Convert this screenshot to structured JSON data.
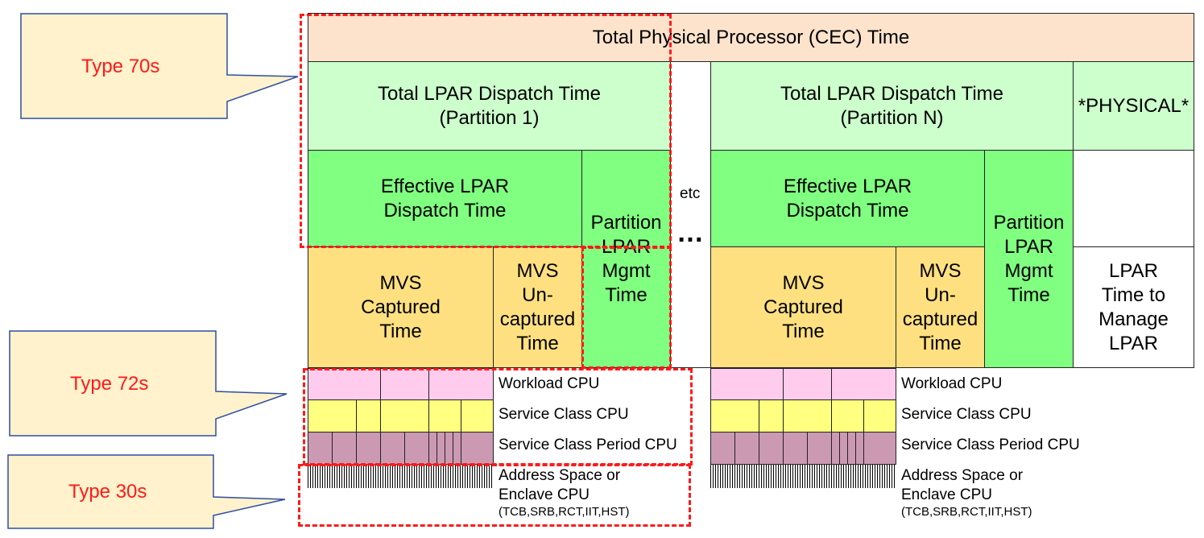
{
  "top_bar": "Total Physical Processor (CEC) Time",
  "partition_1": {
    "dispatch": "Total LPAR Dispatch Time\n(Partition 1)",
    "effective": "Effective LPAR\nDispatch Time",
    "mgmt": "Partition\nLPAR\nMgmt\nTime",
    "captured": "MVS\nCaptured\nTime",
    "uncaptured": "MVS\nUn-\ncaptured\nTime"
  },
  "partition_n": {
    "dispatch": "Total LPAR Dispatch Time\n(Partition N)",
    "effective": "Effective LPAR\nDispatch Time",
    "mgmt": "Partition\nLPAR\nMgmt\nTime",
    "captured": "MVS\nCaptured\nTime",
    "uncaptured": "MVS\nUn-\ncaptured\nTime"
  },
  "physical": {
    "label": "*PHYSICAL*",
    "manage": "LPAR\nTime to\nManage\nLPAR"
  },
  "gap": {
    "etc": "etc",
    "ellipsis": "…"
  },
  "row_labels": {
    "workload": "Workload CPU",
    "service_class": "Service Class CPU",
    "service_class_period": "Service Class Period CPU",
    "address_space_1": "Address Space or",
    "address_space_2": "Enclave CPU",
    "address_space_3": "(TCB,SRB,RCT,IIT,HST)"
  },
  "callouts": {
    "type70": "Type 70s",
    "type72": "Type 72s",
    "type30": "Type 30s"
  },
  "colors": {
    "peach": "#fde3cc",
    "light_green": "#ccffcc",
    "green": "#80ff80",
    "gold": "#ffe080",
    "pink": "#ffccee",
    "yellow": "#ffff80",
    "mauve": "#cc99b3",
    "callout_fill": "#fff2cc",
    "callout_border": "#2f4f9f",
    "dashed_red": "#ff1a1a"
  }
}
